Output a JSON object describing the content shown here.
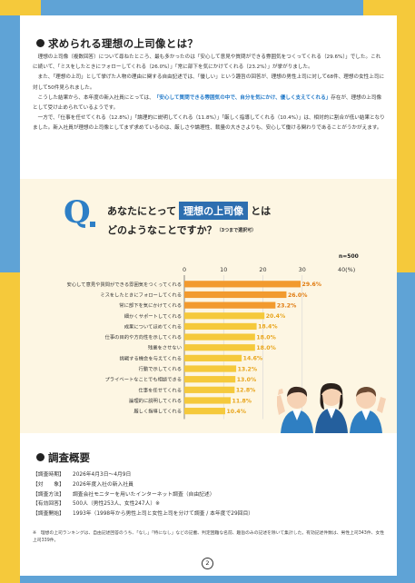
{
  "section1": {
    "heading": "求められる理想の上司像とは？",
    "paragraphs": [
      [
        {
          "t": "理想の上司像（複数回答）について尋ねたところ、最も多かったのは「安心して意見や質問ができる雰囲気をつくってくれる（29.6%）」でした。これに続いて、「ミスをしたときにフォローしてくれる（26.0%）」「常に部下を気にかけてくれる（23.2%）」が挙がりました。"
        }
      ],
      [
        {
          "t": "また、「理想の上司」として挙げた人物の理由に関する自由記述では、「優しい」という趣旨の回答が、理想の男性上司に対して68件、理想の女性上司に対して50件見られました。"
        }
      ],
      [
        {
          "t": "こうした結果から、本年度の新入社員にとっては、"
        },
        {
          "t": "「安心して質問できる雰囲気の中で、自分を気にかけ、優しく支えてくれる」",
          "hl": true
        },
        {
          "t": "存在が、理想の上司像として受け止められているようです。"
        }
      ],
      [
        {
          "t": "一方で、「仕事を任せてくれる（12.8%）」「論理的に説明してくれる（11.8%）」「厳しく指導してくれる（10.4%）」は、相対的に割合が低い結果となりました。新入社員が理想の上司像としてまず求めているのは、厳しさや論理性、裁量の大きさよりも、安心して働ける関わりであることがうかがえます。"
        }
      ]
    ]
  },
  "question": {
    "letter": "Q",
    "line1_pre": "あなたにとって",
    "line1_box": "理想の上司像",
    "line1_post": "とは",
    "line2": "どのようなことですか？",
    "note": "（3つまで選択可）",
    "n_label": "n=500"
  },
  "chart_data": {
    "type": "bar",
    "orientation": "horizontal",
    "title": "",
    "xlabel": "",
    "ylabel": "",
    "xlim": [
      0,
      40
    ],
    "ticks": [
      0,
      10,
      20,
      30,
      40
    ],
    "tick_labels": [
      "0",
      "10",
      "20",
      "30",
      "40(%)"
    ],
    "categories": [
      "安心して意見や質問ができる雰囲気をつくってくれる",
      "ミスをしたときにフォローしてくれる",
      "常に部下を気にかけてくれる",
      "細かくサポートしてくれる",
      "成果についてほめてくれる",
      "仕事の目的や方向性を示してくれる",
      "残業をさせない",
      "挑戦する機会を与えてくれる",
      "行動で示してくれる",
      "プライベートなことでも相談できる",
      "仕事を任せてくれる",
      "論理的に説明してくれる",
      "厳しく指導してくれる"
    ],
    "values": [
      29.6,
      26.0,
      23.2,
      20.4,
      18.4,
      18.0,
      18.0,
      14.6,
      13.2,
      13.0,
      12.8,
      11.8,
      10.4
    ],
    "value_labels": [
      "29.6%",
      "26.0%",
      "23.2%",
      "20.4%",
      "18.4%",
      "18.0%",
      "18.0%",
      "14.6%",
      "13.2%",
      "13.0%",
      "12.8%",
      "11.8%",
      "10.4%"
    ],
    "bar_colors": [
      "#f29a2e",
      "#f29a2e",
      "#f29a2e",
      "#f5c93b",
      "#f5c93b",
      "#f5c93b",
      "#f5c93b",
      "#f5c93b",
      "#f5c93b",
      "#f5c93b",
      "#f5c93b",
      "#f5c93b",
      "#f5c93b"
    ],
    "label_colors": [
      "#e07b10",
      "#e07b10",
      "#e07b10",
      "#e8a41a",
      "#e8a41a",
      "#e8a41a",
      "#e8a41a",
      "#e8a41a",
      "#e8a41a",
      "#e8a41a",
      "#e8a41a",
      "#e8a41a",
      "#e8a41a"
    ],
    "grid": true
  },
  "section2": {
    "heading": "調査概要",
    "rows": [
      {
        "k": "【調査時期】",
        "v": "2026年4月3日～4月9日"
      },
      {
        "k": "【対　　象】",
        "v": "2026年度入社の新入社員"
      },
      {
        "k": "【調査方法】",
        "v": "調査会社モニターを用いたインターネット調査（自由記述）"
      },
      {
        "k": "【有効回答】",
        "v": "500人（男性253人、女性247人）※"
      },
      {
        "k": "【調査開始】",
        "v": "1993年（1998年から男性上司と女性上司を分けて調査 / 本年度で29回目）"
      }
    ],
    "footnote": "※　理想の上司ランキングは、自由記述回答のうち、「なし」「特になし」などの記載、判定困難な名前、趣旨のみの記述を除いて集計した。有効記述件数は、男性上司343件、女性上司339件。"
  },
  "page_number": "2",
  "colors": {
    "background_blue": "#5fa3d6",
    "accent_yellow": "#f5c93b",
    "accent_orange": "#f29a2e",
    "question_blue": "#2d7fc6",
    "highlight_blue": "#1f78c8"
  }
}
